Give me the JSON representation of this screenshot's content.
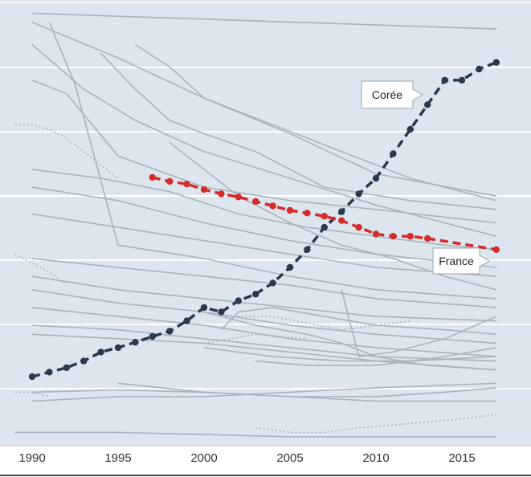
{
  "chart_data": {
    "type": "line",
    "x_ticks": [
      1990,
      1995,
      2000,
      2005,
      2010,
      2015
    ],
    "xlim": [
      1989,
      2018
    ],
    "ylim": [
      0,
      1
    ],
    "grid": true,
    "background_color": "#dde6ee",
    "grid_color": "#ffffff",
    "highlighted_series": [
      {
        "name": "Corée",
        "color": "#2b3a4a",
        "x": [
          1990,
          1991,
          1992,
          1993,
          1994,
          1995,
          1996,
          1997,
          1998,
          1999,
          2000,
          2001,
          2002,
          2003,
          2004,
          2005,
          2006,
          2007,
          2008,
          2009,
          2010,
          2011,
          2012,
          2013,
          2014,
          2015,
          2016,
          2017
        ],
        "y": [
          0.155,
          0.165,
          0.175,
          0.19,
          0.21,
          0.22,
          0.232,
          0.245,
          0.257,
          0.28,
          0.31,
          0.3,
          0.325,
          0.34,
          0.365,
          0.4,
          0.44,
          0.49,
          0.525,
          0.565,
          0.6,
          0.655,
          0.71,
          0.765,
          0.82,
          0.82,
          0.845,
          0.86
        ],
        "label": "Corée"
      },
      {
        "name": "France",
        "color": "#d62b2b",
        "x": [
          1997,
          1998,
          1999,
          2000,
          2001,
          2002,
          2003,
          2004,
          2005,
          2006,
          2007,
          2008,
          2009,
          2010,
          2011,
          2012,
          2013,
          2017
        ],
        "y": [
          0.602,
          0.593,
          0.587,
          0.575,
          0.565,
          0.558,
          0.548,
          0.538,
          0.528,
          0.522,
          0.515,
          0.505,
          0.49,
          0.475,
          0.47,
          0.47,
          0.465,
          0.44
        ],
        "label": "France"
      }
    ],
    "background_series": [
      {
        "style": "solid",
        "x": [
          1990,
          2017
        ],
        "y": [
          0.97,
          0.935
        ]
      },
      {
        "style": "solid",
        "x": [
          1990,
          1995,
          2000,
          2005,
          2010,
          2017
        ],
        "y": [
          0.95,
          0.87,
          0.78,
          0.7,
          0.61,
          0.56
        ]
      },
      {
        "style": "solid",
        "x": [
          1990,
          1993,
          1996,
          2000,
          2005,
          2010,
          2017
        ],
        "y": [
          0.9,
          0.8,
          0.73,
          0.66,
          0.6,
          0.54,
          0.47
        ]
      },
      {
        "style": "solid",
        "x": [
          1990,
          1992,
          1995,
          2000,
          2005,
          2010,
          2017
        ],
        "y": [
          0.82,
          0.79,
          0.65,
          0.58,
          0.55,
          0.53,
          0.5
        ]
      },
      {
        "style": "solid",
        "x": [
          1990,
          1994,
          1998,
          2002,
          2006,
          2010,
          2014,
          2017
        ],
        "y": [
          0.62,
          0.6,
          0.57,
          0.52,
          0.49,
          0.47,
          0.45,
          0.44
        ]
      },
      {
        "style": "solid",
        "x": [
          1990,
          1995,
          2000,
          2005,
          2010,
          2017
        ],
        "y": [
          0.58,
          0.55,
          0.5,
          0.46,
          0.43,
          0.4
        ]
      },
      {
        "style": "solid",
        "x": [
          1990,
          1995,
          2000,
          2005,
          2010,
          2017
        ],
        "y": [
          0.52,
          0.49,
          0.46,
          0.43,
          0.4,
          0.38
        ]
      },
      {
        "style": "solid",
        "x": [
          1990,
          1995,
          2000,
          2005,
          2010,
          2017
        ],
        "y": [
          0.42,
          0.4,
          0.38,
          0.36,
          0.33,
          0.31
        ]
      },
      {
        "style": "solid",
        "x": [
          1990,
          1995,
          2000,
          2005,
          2010,
          2017
        ],
        "y": [
          0.38,
          0.35,
          0.33,
          0.31,
          0.29,
          0.28
        ]
      },
      {
        "style": "solid",
        "x": [
          1990,
          1995,
          2000,
          2005,
          2010,
          2017
        ],
        "y": [
          0.35,
          0.32,
          0.3,
          0.27,
          0.25,
          0.23
        ]
      },
      {
        "style": "solid",
        "x": [
          1990,
          1995,
          2000,
          2005,
          2010,
          2017
        ],
        "y": [
          0.31,
          0.29,
          0.27,
          0.24,
          0.22,
          0.2
        ]
      },
      {
        "style": "solid",
        "x": [
          1990,
          1995,
          2000,
          2005,
          2010,
          2017
        ],
        "y": [
          0.27,
          0.26,
          0.24,
          0.22,
          0.2,
          0.19
        ]
      },
      {
        "style": "solid",
        "x": [
          1990,
          1995,
          2000,
          2005,
          2010,
          2017
        ],
        "y": [
          0.25,
          0.24,
          0.23,
          0.21,
          0.19,
          0.17
        ]
      },
      {
        "style": "solid",
        "x": [
          1990,
          1995,
          2000,
          2005,
          2010,
          2017
        ],
        "y": [
          0.12,
          0.125,
          0.12,
          0.11,
          0.1,
          0.1
        ]
      },
      {
        "style": "solid",
        "x": [
          1990,
          1995,
          2000,
          2005,
          2010,
          2017
        ],
        "y": [
          0.1,
          0.11,
          0.11,
          0.12,
          0.13,
          0.14
        ]
      },
      {
        "style": "solid",
        "x": [
          1991,
          1992.5,
          1995,
          2000,
          2005,
          2010,
          2017
        ],
        "y": [
          0.95,
          0.81,
          0.45,
          0.42,
          0.38,
          0.35,
          0.33
        ]
      },
      {
        "style": "solid",
        "x": [
          1994,
          1996,
          1998,
          2000,
          2003,
          2007,
          2012,
          2017
        ],
        "y": [
          0.88,
          0.8,
          0.73,
          0.7,
          0.66,
          0.58,
          0.55,
          0.53
        ]
      },
      {
        "style": "solid",
        "x": [
          1996,
          1998,
          2000,
          2004,
          2008,
          2012,
          2017
        ],
        "y": [
          0.9,
          0.85,
          0.78,
          0.72,
          0.66,
          0.6,
          0.55
        ]
      },
      {
        "style": "solid",
        "x": [
          1998,
          2000,
          2002,
          2005,
          2008,
          2011,
          2014,
          2017
        ],
        "y": [
          0.68,
          0.62,
          0.56,
          0.5,
          0.45,
          0.42,
          0.38,
          0.35
        ]
      },
      {
        "style": "solid",
        "x": [
          2000,
          2003,
          2006,
          2008,
          2010,
          2013,
          2017
        ],
        "y": [
          0.3,
          0.27,
          0.25,
          0.23,
          0.2,
          0.18,
          0.17
        ]
      },
      {
        "style": "solid",
        "x": [
          2000,
          2004,
          2008,
          2012,
          2017
        ],
        "y": [
          0.22,
          0.2,
          0.19,
          0.19,
          0.2
        ]
      },
      {
        "style": "solid",
        "x": [
          2003,
          2006,
          2010,
          2014,
          2017
        ],
        "y": [
          0.19,
          0.18,
          0.18,
          0.2,
          0.22
        ]
      },
      {
        "style": "solid",
        "x": [
          2008,
          2009,
          2011,
          2014,
          2017
        ],
        "y": [
          0.35,
          0.2,
          0.21,
          0.24,
          0.29
        ]
      },
      {
        "style": "solid",
        "x": [
          2001,
          2002,
          2004,
          2007,
          2010,
          2014,
          2017
        ],
        "y": [
          0.26,
          0.3,
          0.31,
          0.29,
          0.27,
          0.26,
          0.25
        ]
      },
      {
        "style": "solid",
        "x": [
          1995,
          2000,
          2005,
          2010,
          2014,
          2017
        ],
        "y": [
          0.14,
          0.12,
          0.11,
          0.11,
          0.12,
          0.13
        ]
      },
      {
        "style": "dotted",
        "x": [
          1989,
          1990,
          1991,
          1992,
          1993,
          1994,
          1995
        ],
        "y": [
          0.72,
          0.72,
          0.71,
          0.69,
          0.66,
          0.63,
          0.6
        ]
      },
      {
        "style": "dotted",
        "x": [
          1989,
          1990,
          1991,
          1992
        ],
        "y": [
          0.43,
          0.41,
          0.39,
          0.36
        ]
      },
      {
        "style": "dotted",
        "x": [
          2000,
          2003,
          2006
        ],
        "y": [
          0.23,
          0.25,
          0.24
        ]
      },
      {
        "style": "dotted",
        "x": [
          2001,
          2004,
          2008,
          2012
        ],
        "y": [
          0.29,
          0.29,
          0.26,
          0.28
        ]
      },
      {
        "style": "dotted",
        "x": [
          2003,
          2005,
          2007,
          2009,
          2012,
          2015,
          2017
        ],
        "y": [
          0.04,
          0.03,
          0.03,
          0.04,
          0.05,
          0.06,
          0.07
        ]
      },
      {
        "style": "dotted",
        "x": [
          1989,
          1990,
          1991
        ],
        "y": [
          0.12,
          0.12,
          0.11
        ]
      },
      {
        "style": "solid",
        "x": [
          1989,
          1995,
          2000,
          2005,
          2010,
          2017
        ],
        "y": [
          0.03,
          0.03,
          0.025,
          0.02,
          0.02,
          0.02
        ]
      }
    ]
  }
}
